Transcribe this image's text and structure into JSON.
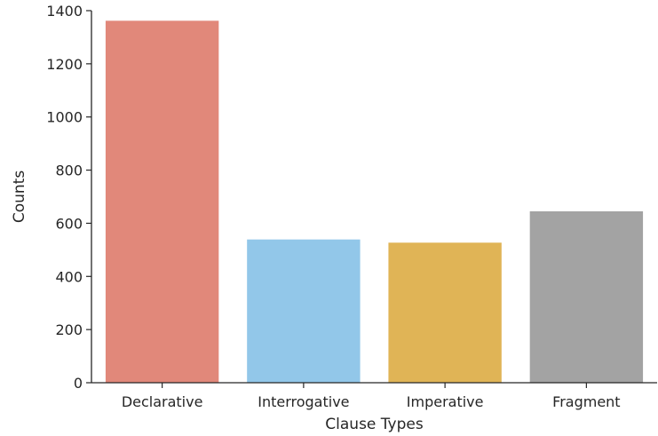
{
  "chart_data": {
    "type": "bar",
    "title": "",
    "xlabel": "Clause Types",
    "ylabel": "Counts",
    "categories": [
      "Declarative",
      "Interrogative",
      "Imperative",
      "Fragment"
    ],
    "values": [
      1362,
      539,
      527,
      645
    ],
    "colors": [
      "#e1887a",
      "#92c7e9",
      "#e0b456",
      "#a3a3a3"
    ],
    "ylim": [
      0,
      1400
    ],
    "yticks": [
      0,
      200,
      400,
      600,
      800,
      1000,
      1200,
      1400
    ],
    "ytick_labels": [
      "0",
      "200",
      "400",
      "600",
      "800",
      "1000",
      "1200",
      "1400"
    ],
    "grid": false,
    "legend": "none"
  }
}
